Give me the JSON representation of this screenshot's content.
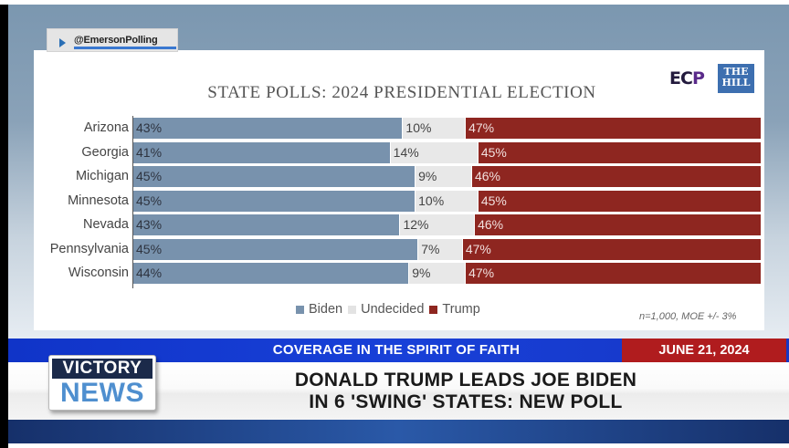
{
  "source_handle": {
    "icon": "play-icon",
    "label": "@EmersonPolling"
  },
  "logos": {
    "ecp": {
      "text_main": "EC",
      "text_accent": "P"
    },
    "the_hill": {
      "line1": "THE",
      "line2": "HILL"
    }
  },
  "chart_data": {
    "type": "bar",
    "orientation": "horizontal",
    "stacked": true,
    "title": "STATE POLLS: 2024 PRESIDENTIAL ELECTION",
    "categories": [
      "Arizona",
      "Georgia",
      "Michigan",
      "Minnesota",
      "Nevada",
      "Pennsylvania",
      "Wisconsin"
    ],
    "series": [
      {
        "name": "Biden",
        "color": "#7892ad",
        "values": [
          43,
          41,
          45,
          45,
          43,
          45,
          44
        ]
      },
      {
        "name": "Undecided",
        "color": "#e8e8e8",
        "values": [
          10,
          14,
          9,
          10,
          12,
          7,
          9
        ]
      },
      {
        "name": "Trump",
        "color": "#8e2620",
        "values": [
          47,
          45,
          46,
          45,
          46,
          47,
          47
        ]
      }
    ],
    "value_suffix": "%",
    "xlim": [
      0,
      100
    ],
    "legend": {
      "placement": "bottom-center",
      "entries": [
        "Biden",
        "Undecided",
        "Trump"
      ]
    },
    "note": "n=1,000, MOE +/- 3%",
    "grid": false
  },
  "ticker": {
    "tagline": "COVERAGE IN THE SPIRIT OF FAITH",
    "date": "JUNE 21, 2024"
  },
  "brand": {
    "top": "VICTORY",
    "bottom": "NEWS"
  },
  "headline": {
    "line1": "DONALD TRUMP LEADS JOE BIDEN",
    "line2": "IN 6 'SWING' STATES: NEW POLL"
  },
  "colors": {
    "biden": "#7892ad",
    "undecided": "#e8e8e8",
    "trump": "#8e2620",
    "ticker_blue": "#1840d8",
    "date_red": "#b01c1e"
  }
}
